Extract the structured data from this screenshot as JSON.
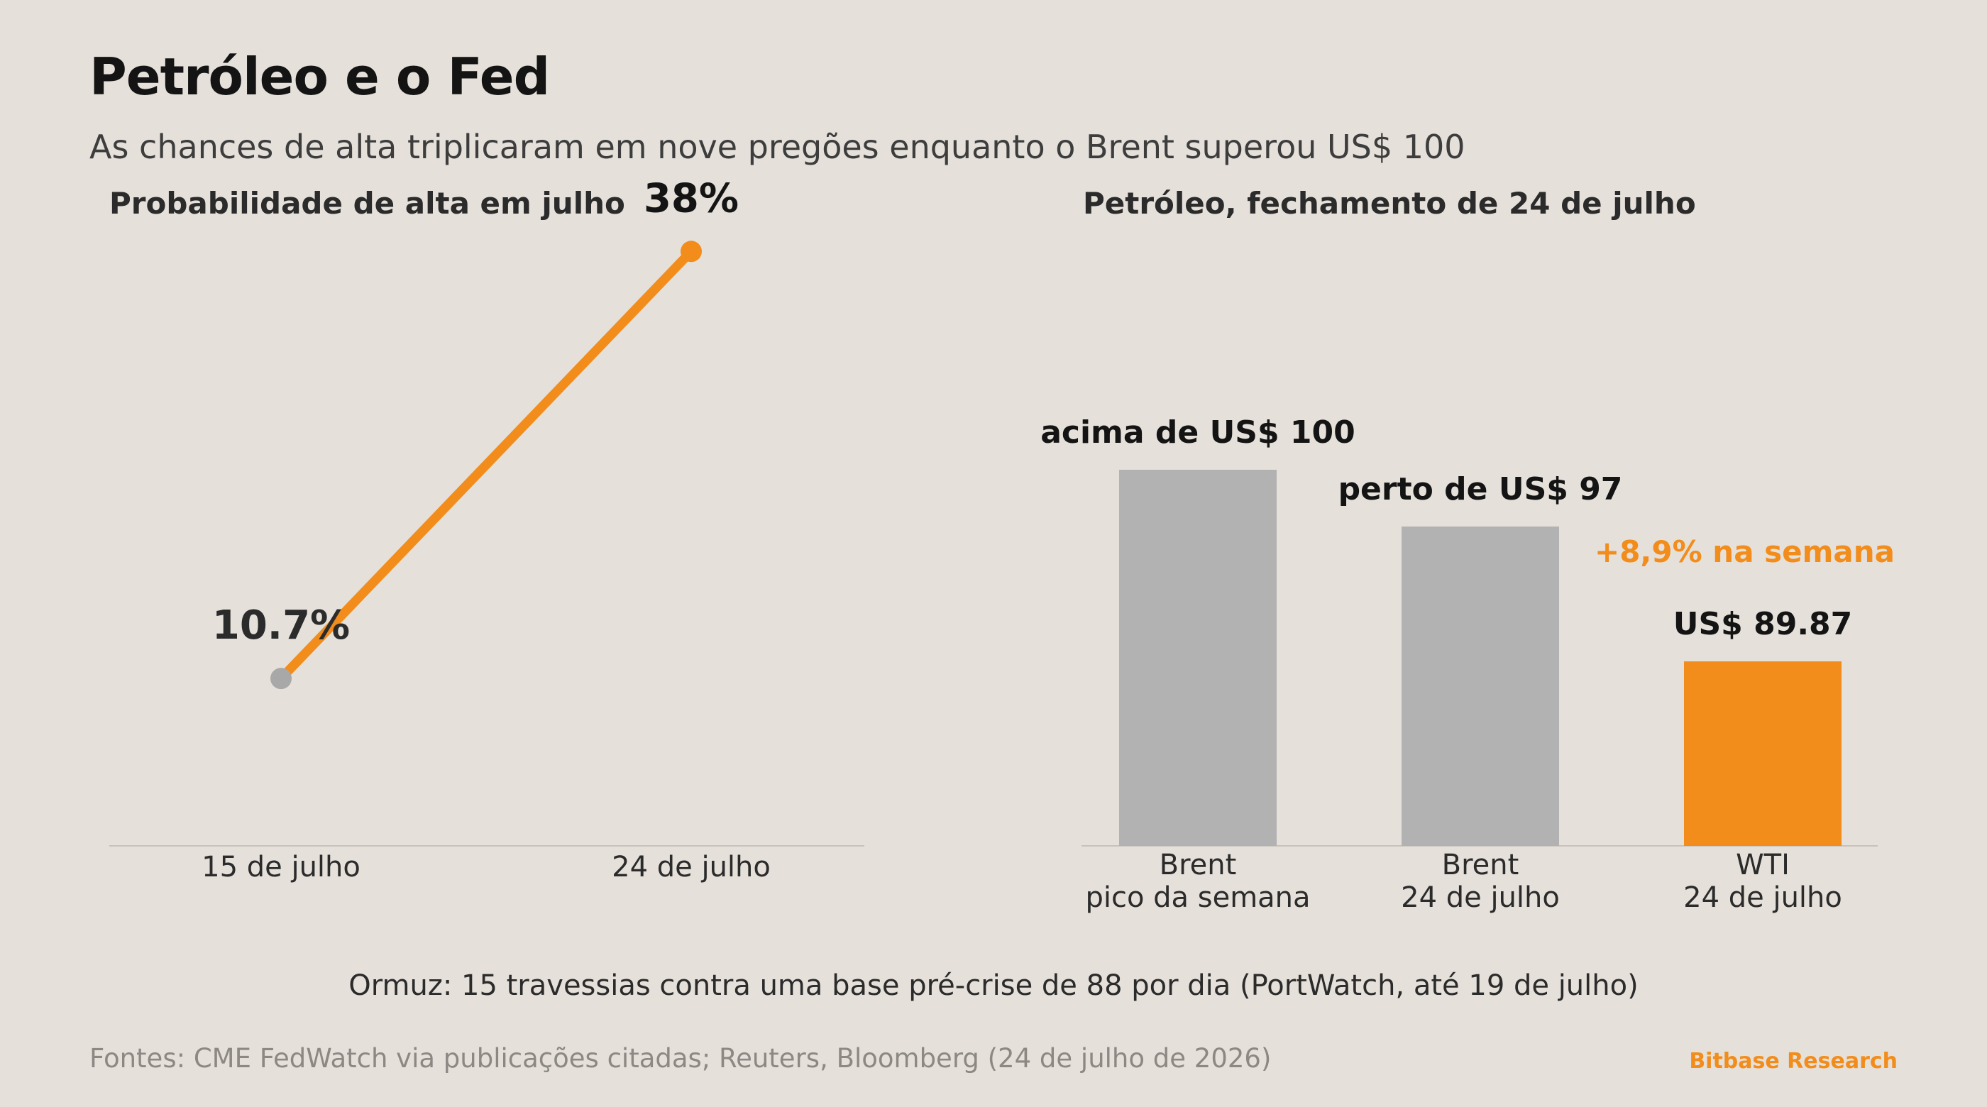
{
  "header": {
    "title": "Petróleo e o Fed",
    "subtitle": "As chances de alta triplicaram em nove pregões enquanto o Brent superou US$ 100"
  },
  "panels": {
    "left_title": "Probabilidade de alta em julho",
    "right_title": "Petróleo, fechamento de 24 de julho"
  },
  "colors": {
    "accent": "#f28c1b",
    "gray_bar": "#b2b2b2",
    "gray_point": "#a8a8a8",
    "background": "#e5e0da",
    "axis": "#c7c2bc",
    "text_dark": "#141414"
  },
  "chart_data": [
    {
      "type": "line",
      "categories": [
        "15 de julho",
        "24 de julho"
      ],
      "values": [
        10.7,
        38
      ],
      "data_labels": [
        "10.7%",
        "38%"
      ],
      "ylim": [
        0,
        45
      ]
    },
    {
      "type": "bar",
      "categories": [
        [
          "Brent",
          "pico da semana"
        ],
        [
          "Brent",
          "24 de julho"
        ],
        [
          "WTI",
          "24 de julho"
        ]
      ],
      "values": [
        100,
        97,
        89.87
      ],
      "data_labels": [
        "acima de US$ 100",
        "perto de US$ 97",
        "US$ 89.87"
      ],
      "annotation": "+8,9% na semana",
      "highlight_index": 2
    }
  ],
  "footer": {
    "note": "Ormuz: 15 travessias contra uma base pré-crise de 88 por dia (PortWatch, até 19 de julho)",
    "sources": "Fontes: CME FedWatch via publicações citadas; Reuters, Bloomberg (24 de julho de 2026)",
    "brand": "Bitbase Research"
  }
}
